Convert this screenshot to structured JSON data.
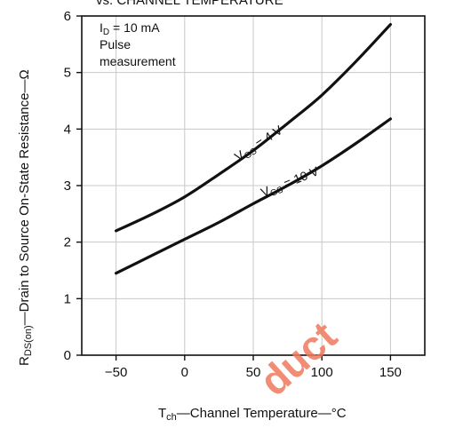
{
  "chart_data": {
    "type": "line",
    "title": "vs. CHANNEL TEMPERATURE",
    "xlabel": "T",
    "xlabel_sub": "ch",
    "xlabel_rest": "—Channel Temperature—°C",
    "ylabel": "R",
    "ylabel_sub": "DS(on)",
    "ylabel_rest": "—Drain to Source On-State Resistance—Ω",
    "xlim": [
      -75,
      175
    ],
    "ylim": [
      0,
      6
    ],
    "x_ticks": [
      -50,
      0,
      50,
      100,
      150
    ],
    "x_tick_labels": [
      "−50",
      "0",
      "50",
      "100",
      "150"
    ],
    "y_ticks": [
      0,
      1,
      2,
      3,
      4,
      5,
      6
    ],
    "y_tick_labels": [
      "0",
      "1",
      "2",
      "3",
      "4",
      "5",
      "6"
    ],
    "grid": true,
    "annotations": {
      "id_prefix": "I",
      "id_sub": "D",
      "id_rest": " = 10 mA",
      "line2": "Pulse",
      "line3": "measurement"
    },
    "series": [
      {
        "name": "VGS = 4 V",
        "label_prefix": "V",
        "label_sub": "GS",
        "label_rest": " = 4 V",
        "x": [
          -50,
          -25,
          0,
          25,
          50,
          75,
          100,
          125,
          150
        ],
        "y": [
          2.2,
          2.48,
          2.8,
          3.2,
          3.62,
          4.1,
          4.6,
          5.2,
          5.85
        ]
      },
      {
        "name": "VGS = 10 V",
        "label_prefix": "V",
        "label_sub": "GS",
        "label_rest": " = 10 V",
        "x": [
          -50,
          -25,
          0,
          25,
          50,
          75,
          100,
          125,
          150
        ],
        "y": [
          1.45,
          1.75,
          2.05,
          2.35,
          2.68,
          3.0,
          3.35,
          3.75,
          4.18
        ]
      }
    ]
  },
  "watermark": "duct",
  "colors": {
    "line": "#111111",
    "grid": "#c8c8c8",
    "watermark": "#f07a5e"
  }
}
